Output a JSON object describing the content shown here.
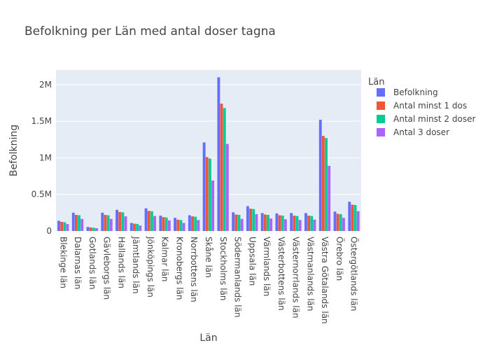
{
  "chart_data": {
    "type": "bar",
    "title": "Befolkning per Län med antal doser tagna",
    "xlabel": "Län",
    "ylabel": "Befolkning",
    "ylim": [
      0,
      2200000
    ],
    "yticks": [
      0,
      500000,
      1000000,
      1500000,
      2000000
    ],
    "ytick_labels": [
      "0",
      "0.5M",
      "1M",
      "1.5M",
      "2M"
    ],
    "grid": true,
    "legend_title": "Län",
    "legend_position": "right",
    "categories": [
      "Blekinge län",
      "Dalarnas län",
      "Gotlands län",
      "Gävleborgs län",
      "Hallands län",
      "Jämtlands län",
      "Jönköpings län",
      "Kalmar län",
      "Kronobergs län",
      "Norrbottens län",
      "Skåne län",
      "Stockholms län",
      "Södermanlands län",
      "Uppsala län",
      "Värmlands län",
      "Västerbottens län",
      "Västernorrlands län",
      "Västmanlands län",
      "Västra Götalands län",
      "Örebro län",
      "Östergötlands län"
    ],
    "series": [
      {
        "name": "Befolkning",
        "color": "#636efa",
        "values": [
          140000,
          250000,
          55000,
          250000,
          290000,
          110000,
          310000,
          210000,
          180000,
          215000,
          1210000,
          2100000,
          255000,
          340000,
          245000,
          240000,
          245000,
          245000,
          1520000,
          265000,
          400000
        ]
      },
      {
        "name": "Antal minst 1 dos",
        "color": "#ef553b",
        "values": [
          125000,
          220000,
          48000,
          220000,
          260000,
          100000,
          275000,
          190000,
          155000,
          200000,
          1010000,
          1740000,
          225000,
          305000,
          225000,
          215000,
          210000,
          210000,
          1300000,
          235000,
          360000
        ]
      },
      {
        "name": "Antal minst 2 doser",
        "color": "#00cc96",
        "values": [
          120000,
          215000,
          45000,
          215000,
          255000,
          97000,
          270000,
          185000,
          150000,
          195000,
          990000,
          1680000,
          220000,
          300000,
          220000,
          210000,
          205000,
          205000,
          1270000,
          230000,
          355000
        ]
      },
      {
        "name": "Antal 3 doser",
        "color": "#ab63fa",
        "values": [
          95000,
          165000,
          38000,
          165000,
          200000,
          75000,
          205000,
          145000,
          110000,
          150000,
          690000,
          1190000,
          165000,
          230000,
          170000,
          160000,
          150000,
          155000,
          890000,
          180000,
          270000
        ]
      }
    ]
  }
}
